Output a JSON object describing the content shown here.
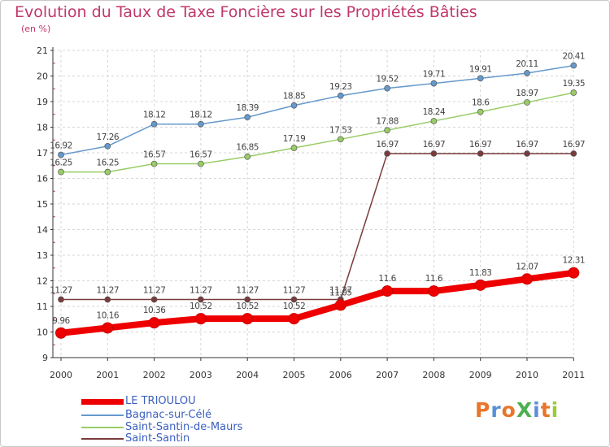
{
  "title": "Evolution du Taux de Taxe Foncière sur les Propriétés Bâties",
  "unit_label": "(en %)",
  "logo": "ProXiti",
  "chart_data": {
    "type": "line",
    "x": [
      "2000",
      "2001",
      "2002",
      "2003",
      "2004",
      "2005",
      "2006",
      "2007",
      "2008",
      "2009",
      "2010",
      "2011"
    ],
    "ylim": [
      9,
      21
    ],
    "yticks": [
      9,
      10,
      11,
      12,
      13,
      14,
      15,
      16,
      17,
      18,
      19,
      20,
      21
    ],
    "grid": true,
    "legend_position": "bottom-left",
    "series": [
      {
        "name": "LE TRIOULOU",
        "color": "#ee0000",
        "values": [
          9.96,
          10.16,
          10.36,
          10.52,
          10.52,
          10.52,
          11.05,
          11.6,
          11.6,
          11.83,
          12.07,
          12.31
        ],
        "labels": [
          "9.96",
          "10.16",
          "10.36",
          "10.52",
          "10.52",
          "10.52",
          "11.05",
          "11.6",
          "11.6",
          "11.83",
          "12.07",
          "12.31"
        ]
      },
      {
        "name": "Bagnac-sur-Célé",
        "color": "#6699cc",
        "values": [
          16.92,
          17.26,
          18.12,
          18.12,
          18.39,
          18.85,
          19.23,
          19.52,
          19.71,
          19.91,
          20.11,
          20.41
        ],
        "labels": [
          "16.92",
          "17.26",
          "18.12",
          "18.12",
          "18.39",
          "18.85",
          "19.23",
          "19.52",
          "19.71",
          "19.91",
          "20.11",
          "20.41"
        ]
      },
      {
        "name": "Saint-Santin-de-Maurs",
        "color": "#99cc66",
        "values": [
          16.25,
          16.25,
          16.57,
          16.57,
          16.85,
          17.19,
          17.53,
          17.88,
          18.24,
          18.6,
          18.97,
          19.35
        ],
        "labels": [
          "16.25",
          "16.25",
          "16.57",
          "16.57",
          "16.85",
          "17.19",
          "17.53",
          "17.88",
          "18.24",
          "18.6",
          "18.97",
          "19.35"
        ]
      },
      {
        "name": "Saint-Santin",
        "color": "#7a3b3b",
        "values": [
          11.27,
          11.27,
          11.27,
          11.27,
          11.27,
          11.27,
          11.27,
          16.97,
          16.97,
          16.97,
          16.97,
          16.97
        ],
        "labels": [
          "11.27",
          "11.27",
          "11.27",
          "11.27",
          "11.27",
          "11.27",
          "11.27",
          "16.97",
          "16.97",
          "16.97",
          "16.97",
          "16.97"
        ]
      }
    ]
  },
  "colors": {
    "title": "#c0376a",
    "logo_letters": [
      "#e8752a",
      "#5a8fd6",
      "#e8752a",
      "#4cb050",
      "#5a8fd6",
      "#e8752a",
      "#9acd32"
    ]
  }
}
